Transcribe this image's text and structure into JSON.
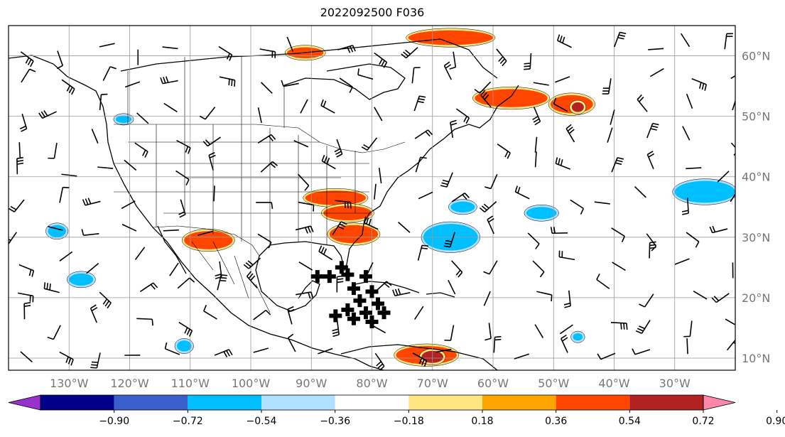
{
  "title": "2022092500 F036",
  "map": {
    "lon_range": [
      -140,
      -20
    ],
    "lat_range": [
      8,
      65
    ],
    "lon_ticks": [
      {
        "lon": -130,
        "label": "130°W"
      },
      {
        "lon": -120,
        "label": "120°W"
      },
      {
        "lon": -110,
        "label": "110°W"
      },
      {
        "lon": -100,
        "label": "100°W"
      },
      {
        "lon": -90,
        "label": "90°W"
      },
      {
        "lon": -80,
        "label": "80°W"
      },
      {
        "lon": -70,
        "label": "70°W"
      },
      {
        "lon": -60,
        "label": "60°W"
      },
      {
        "lon": -50,
        "label": "50°W"
      },
      {
        "lon": -40,
        "label": "40°W"
      },
      {
        "lon": -30,
        "label": "30°W"
      }
    ],
    "lat_ticks": [
      {
        "lat": 10,
        "label": "10°N"
      },
      {
        "lat": 20,
        "label": "20°N"
      },
      {
        "lat": 30,
        "label": "30°N"
      },
      {
        "lat": 40,
        "label": "40°N"
      },
      {
        "lat": 50,
        "label": "50°N"
      },
      {
        "lat": 60,
        "label": "60°N"
      }
    ],
    "grid": true
  },
  "colorbar": {
    "colors": [
      "#9932cc",
      "#00008b",
      "#3a5fcd",
      "#00bfff",
      "#b0e0ff",
      "#ffffff",
      "#ffe680",
      "#ffa500",
      "#ff4500",
      "#b22222",
      "#ff88aa"
    ],
    "ticks": [
      "−0.90",
      "−0.72",
      "−0.54",
      "−0.36",
      "−0.18",
      "0.18",
      "0.36",
      "0.54",
      "0.72",
      "0.90"
    ]
  },
  "chart_data": {
    "type": "heatmap",
    "positive_regions": [
      {
        "lon": -57,
        "lat": 53,
        "rx": 6,
        "ry": 1.5,
        "level": "0.54"
      },
      {
        "lon": -47,
        "lat": 52,
        "rx": 3.5,
        "ry": 1.5,
        "level": "0.54"
      },
      {
        "lon": -46,
        "lat": 51.5,
        "rx": 1,
        "ry": 0.8,
        "level": "0.72"
      },
      {
        "lon": -86,
        "lat": 36.5,
        "rx": 5,
        "ry": 1.2,
        "level": "0.54"
      },
      {
        "lon": -84,
        "lat": 34,
        "rx": 4,
        "ry": 1.2,
        "level": "0.54"
      },
      {
        "lon": -83,
        "lat": 30.5,
        "rx": 4,
        "ry": 1.5,
        "level": "0.54"
      },
      {
        "lon": -107,
        "lat": 29.5,
        "rx": 4,
        "ry": 1.5,
        "level": "0.54"
      },
      {
        "lon": -71,
        "lat": 10.5,
        "rx": 5,
        "ry": 1.5,
        "level": "0.54"
      },
      {
        "lon": -70,
        "lat": 10.2,
        "rx": 1.8,
        "ry": 1,
        "level": "0.72"
      },
      {
        "lon": -67,
        "lat": 63,
        "rx": 7,
        "ry": 1.2,
        "level": "0.54"
      },
      {
        "lon": -91,
        "lat": 60.5,
        "rx": 3,
        "ry": 0.9,
        "level": "0.54"
      }
    ],
    "negative_regions": [
      {
        "lon": -67,
        "lat": 30,
        "rx": 4.5,
        "ry": 2.2,
        "level": "-0.36"
      },
      {
        "lon": -65,
        "lat": 35,
        "rx": 2,
        "ry": 0.9,
        "level": "-0.36"
      },
      {
        "lon": -25,
        "lat": 37.5,
        "rx": 5,
        "ry": 1.8,
        "level": "-0.36"
      },
      {
        "lon": -52,
        "lat": 34,
        "rx": 2.5,
        "ry": 1,
        "level": "-0.36"
      },
      {
        "lon": -128,
        "lat": 23,
        "rx": 2,
        "ry": 1,
        "level": "-0.36"
      },
      {
        "lon": -132,
        "lat": 31,
        "rx": 1.5,
        "ry": 1,
        "level": "-0.36"
      },
      {
        "lon": -121,
        "lat": 49.5,
        "rx": 1.3,
        "ry": 0.6,
        "level": "-0.36"
      },
      {
        "lon": -111,
        "lat": 12,
        "rx": 1.2,
        "ry": 0.9,
        "level": "-0.36"
      },
      {
        "lon": -46,
        "lat": 13.5,
        "rx": 0.8,
        "ry": 0.6,
        "level": "-0.36"
      }
    ],
    "wind_barbs": {
      "lon_step": 6.5,
      "lat_step": 5,
      "note": ""
    },
    "plus_markers": [
      {
        "lon": -89,
        "lat": 23.5
      },
      {
        "lon": -87,
        "lat": 23.5
      },
      {
        "lon": -84,
        "lat": 23.8
      },
      {
        "lon": -81,
        "lat": 23.5
      },
      {
        "lon": -85,
        "lat": 25
      },
      {
        "lon": -83,
        "lat": 21.5
      },
      {
        "lon": -80,
        "lat": 21
      },
      {
        "lon": -82,
        "lat": 19.5
      },
      {
        "lon": -79,
        "lat": 19
      },
      {
        "lon": -84,
        "lat": 18
      },
      {
        "lon": -81,
        "lat": 17.5
      },
      {
        "lon": -78,
        "lat": 17.5
      },
      {
        "lon": -83,
        "lat": 16.5
      },
      {
        "lon": -80,
        "lat": 16
      },
      {
        "lon": -86,
        "lat": 17
      }
    ]
  }
}
